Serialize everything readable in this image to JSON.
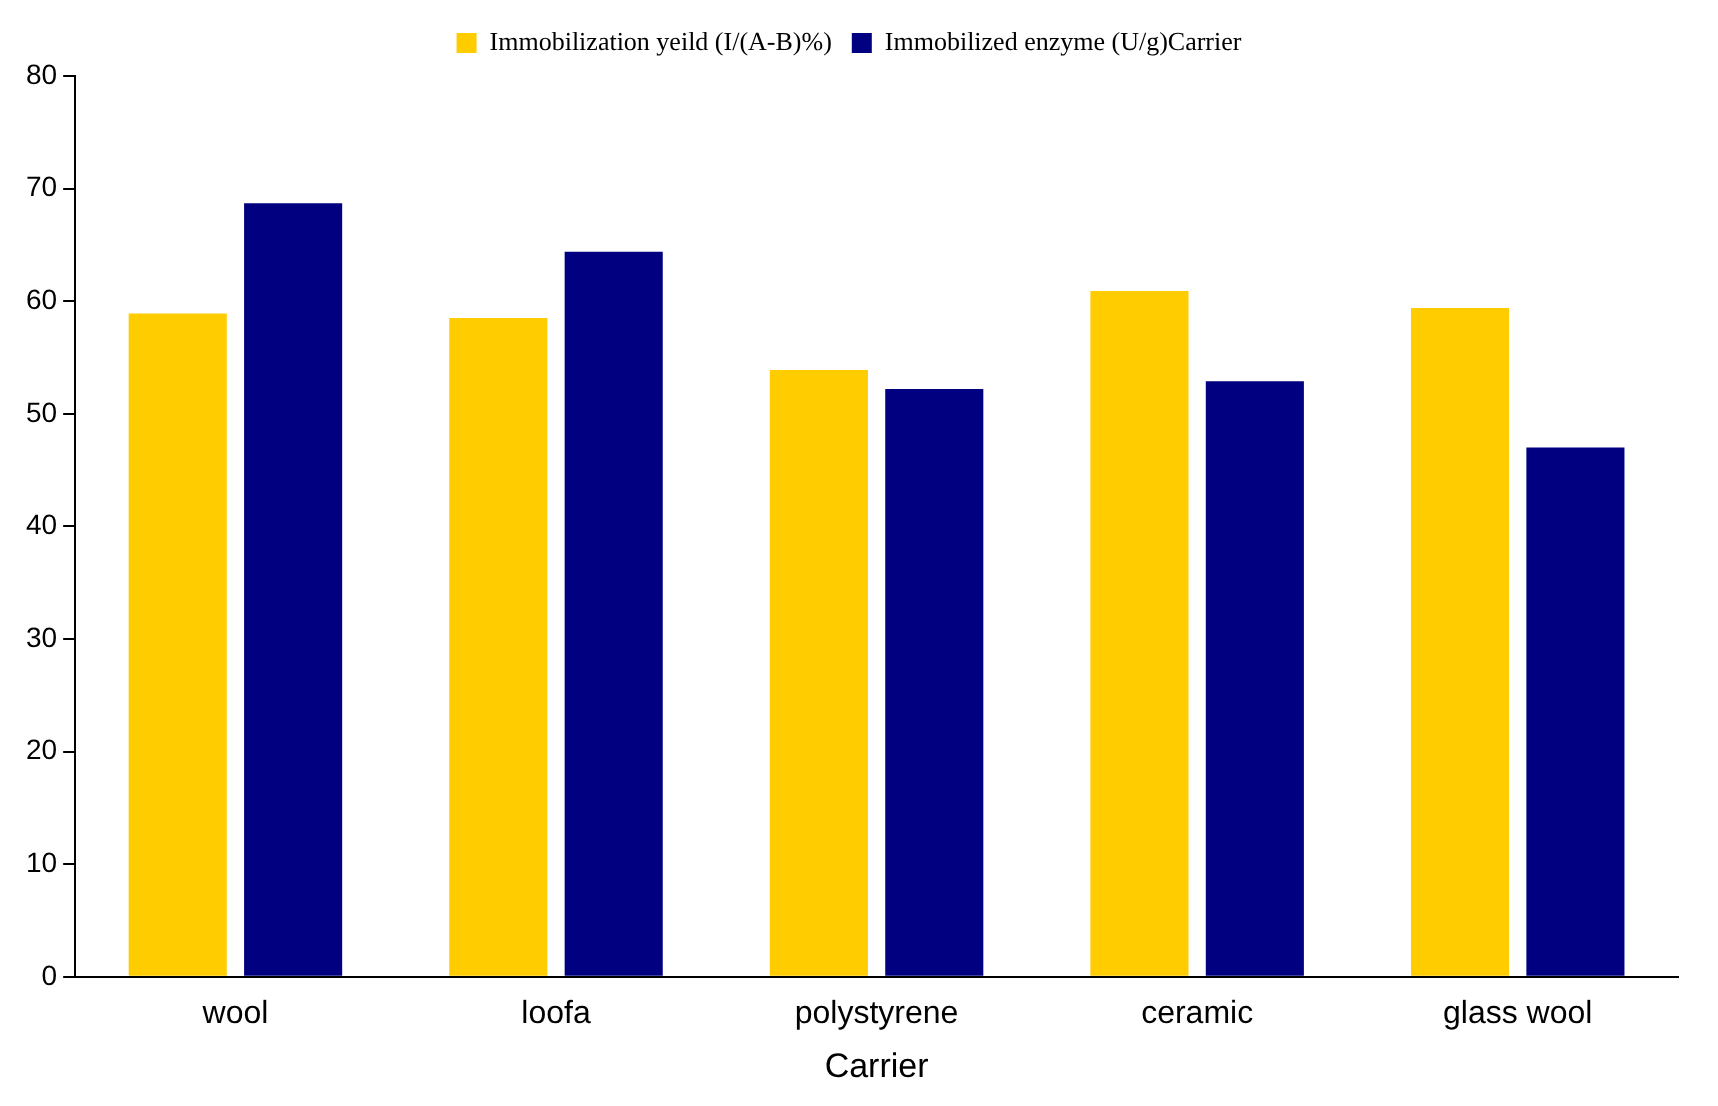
{
  "chart_data": {
    "type": "bar",
    "xlabel": "Carrier",
    "categories": [
      "wool",
      "loofa",
      "polystyrene",
      "ceramic",
      "glass wool"
    ],
    "series": [
      {
        "name": "Immobilization yeild (I/(A-B)%)",
        "color": "#ffcc00",
        "values": [
          58.9,
          58.5,
          53.9,
          60.9,
          59.4
        ]
      },
      {
        "name": "Immobilized enzyme (U/g)Carrier",
        "color": "#000080",
        "values": [
          68.7,
          64.4,
          52.2,
          52.9,
          47.0
        ]
      }
    ],
    "ylim": [
      0,
      80
    ],
    "yticks": [
      0,
      10,
      20,
      30,
      40,
      50,
      60,
      70,
      80
    ],
    "grid": false,
    "legend": "top"
  }
}
